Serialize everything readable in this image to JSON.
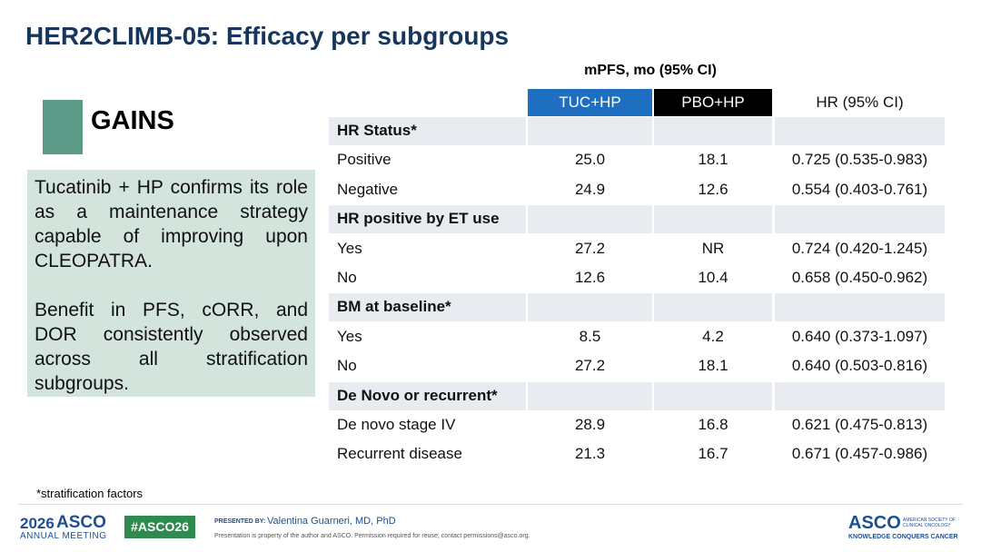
{
  "header": {
    "title": "HER2CLIMB-05: Efficacy per subgroups"
  },
  "gains": {
    "label": "GAINS",
    "paragraphs": [
      "Tucatinib + HP confirms its role as a maintenance strategy capable of improving upon CLEOPATRA.",
      "Benefit in PFS, cORR, and DOR consistently observed across all stratification subgroups."
    ]
  },
  "table": {
    "caption": "mPFS, mo (95% CI)",
    "columns": [
      "TUC+HP",
      "PBO+HP",
      "HR (95% CI)"
    ],
    "groups": [
      {
        "label": "HR Status*",
        "rows": [
          [
            "Positive",
            "25.0",
            "18.1",
            "0.725 (0.535-0.983)"
          ],
          [
            "Negative",
            "24.9",
            "12.6",
            "0.554 (0.403-0.761)"
          ]
        ]
      },
      {
        "label": "HR positive by ET use",
        "rows": [
          [
            "Yes",
            "27.2",
            "NR",
            "0.724 (0.420-1.245)"
          ],
          [
            "No",
            "12.6",
            "10.4",
            "0.658 (0.450-0.962)"
          ]
        ]
      },
      {
        "label": "BM at baseline*",
        "rows": [
          [
            "Yes",
            "8.5",
            "4.2",
            "0.640 (0.373-1.097)"
          ],
          [
            "No",
            "27.2",
            "18.1",
            "0.640 (0.503-0.816)"
          ]
        ]
      },
      {
        "label": "De Novo or recurrent*",
        "rows": [
          [
            "De novo stage IV",
            "28.9",
            "16.8",
            "0.621 (0.475-0.813)"
          ],
          [
            "Recurrent disease",
            "21.3",
            "16.7",
            "0.671 (0.457-0.986)"
          ]
        ]
      }
    ]
  },
  "footnote": "*stratification factors",
  "footer": {
    "year": "2026",
    "brand": "ASCO",
    "meeting": "ANNUAL MEETING",
    "hashtag": "#ASCO26",
    "presented_by": "PRESENTED BY:",
    "presenter": "Valentina Guarneri, MD, PhD",
    "disclaimer": "Presentation is property of the author and ASCO. Permission required for reuse; contact permissions@asco.org.",
    "logo": "ASCO",
    "society": "AMERICAN SOCIETY OF CLINICAL ONCOLOGY",
    "tagline": "KNOWLEDGE CONQUERS CANCER"
  }
}
